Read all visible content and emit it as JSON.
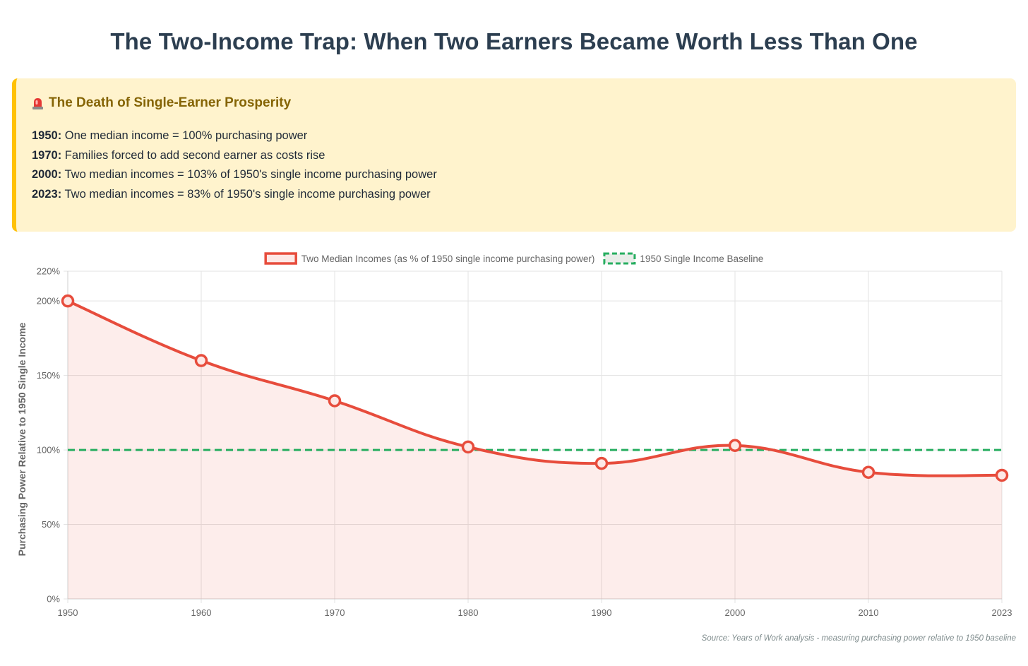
{
  "title": "The Two-Income Trap: When Two Earners Became Worth Less Than One",
  "alert": {
    "heading": "The Death of Single-Earner Prosperity",
    "icon": "siren-icon",
    "lines": [
      {
        "year": "1950:",
        "text": " One median income = 100% purchasing power"
      },
      {
        "year": "1970:",
        "text": " Families forced to add second earner as costs rise"
      },
      {
        "year": "2000:",
        "text": " Two median incomes = 103% of 1950's single income purchasing power"
      },
      {
        "year": "2023:",
        "text": " Two median incomes = 83% of 1950's single income purchasing power"
      }
    ]
  },
  "chart_data": {
    "type": "line",
    "categories": [
      "1950",
      "1960",
      "1970",
      "1980",
      "1990",
      "2000",
      "2010",
      "2023"
    ],
    "series": [
      {
        "name": "Two Median Incomes (as % of 1950 single income purchasing power)",
        "values": [
          200,
          160,
          133,
          102,
          91,
          103,
          85,
          83
        ],
        "color": "#e74c3c",
        "fill": "rgba(231, 76, 60, 0.1)"
      },
      {
        "name": "1950 Single Income Baseline",
        "values": [
          100,
          100,
          100,
          100,
          100,
          100,
          100,
          100
        ],
        "color": "#27ae60",
        "dashed": true
      }
    ],
    "ylabel": "Purchasing Power Relative to 1950 Single Income",
    "xlabel": "",
    "ylim": [
      0,
      220
    ],
    "yticks": [
      0,
      50,
      100,
      150,
      200,
      220
    ],
    "ytick_labels": [
      "0%",
      "50%",
      "100%",
      "150%",
      "200%",
      "220%"
    ],
    "legend_position": "top-center",
    "grid": true
  },
  "source": "Source: Years of Work analysis - measuring purchasing power relative to 1950 baseline"
}
